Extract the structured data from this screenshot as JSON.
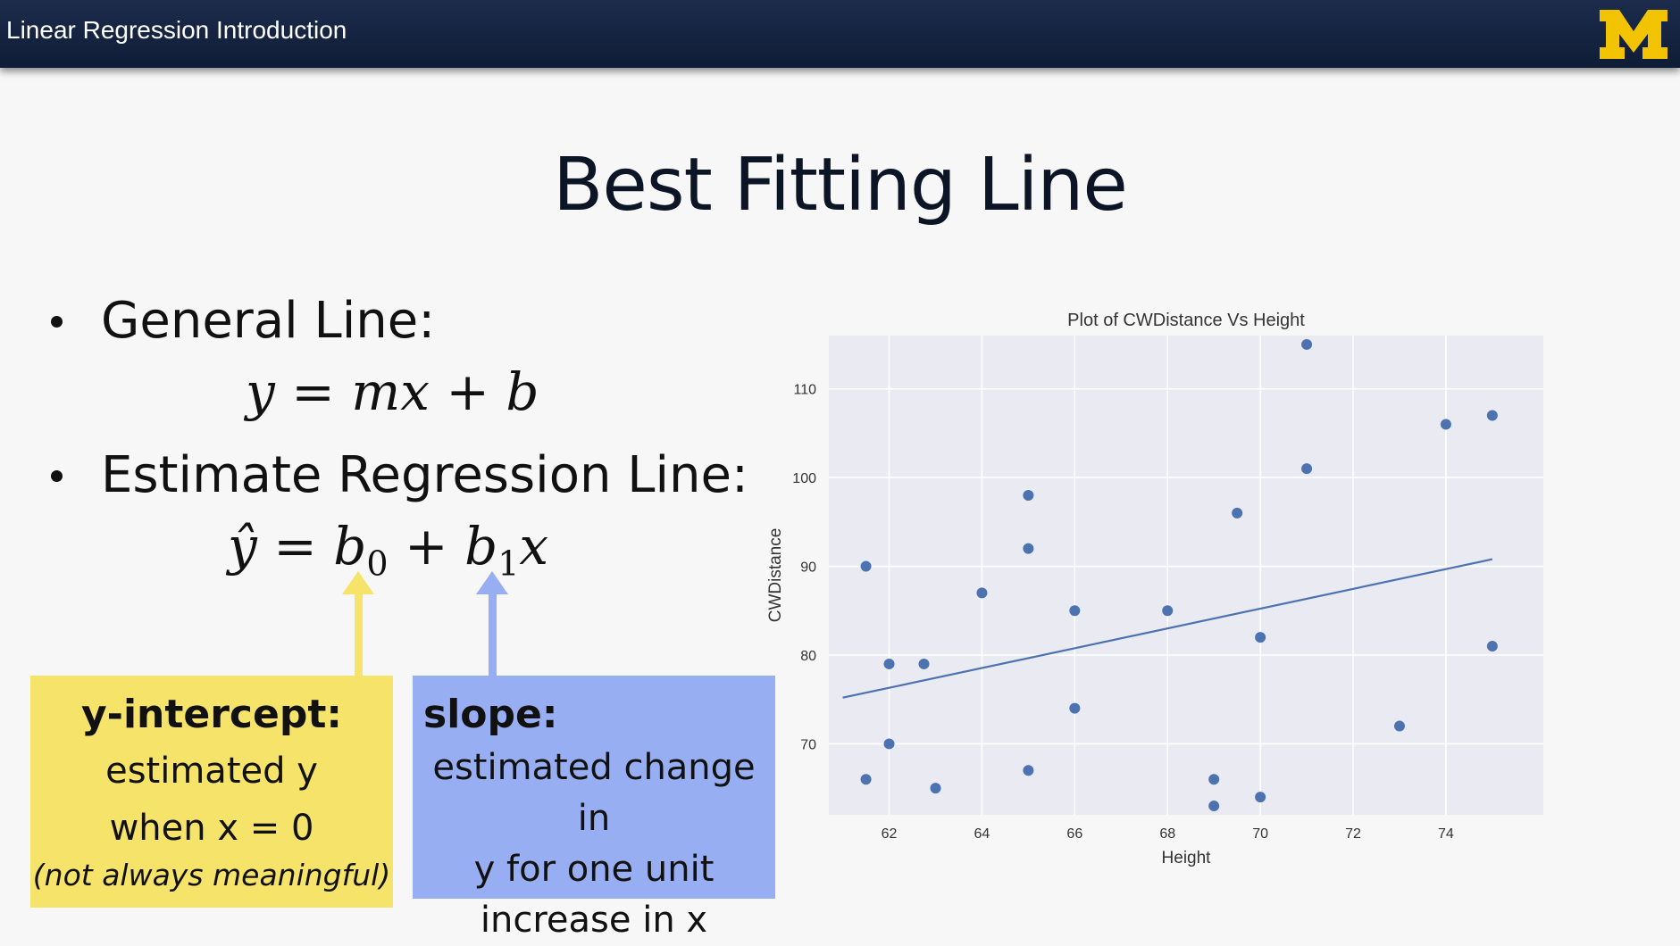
{
  "header": {
    "title": "Linear Regression Introduction",
    "logo_text": "M",
    "logo_color": "#f2c300"
  },
  "slide": {
    "title": "Best Fitting Line",
    "bullets": [
      {
        "label": "General Line:",
        "equation": "y = mx + b"
      },
      {
        "label": "Estimate Regression Line:",
        "equation": "ŷ = b0 + b1x"
      }
    ],
    "equation_parts": {
      "yhat": "ŷ",
      "equals": "=",
      "b": "b",
      "sub0": "0",
      "plus": "+",
      "sub1": "1",
      "x": "x"
    },
    "callouts": {
      "y_intercept": {
        "heading": "y-intercept:",
        "line1": "estimated y",
        "line2": "when x = 0",
        "note": "(not always meaningful)",
        "color": "#f5e36a"
      },
      "slope": {
        "heading": "slope:",
        "line1": "estimated change in",
        "line2": "y for one unit",
        "line3": "increase in x",
        "color": "#98aef2"
      }
    }
  },
  "chart_data": {
    "type": "scatter",
    "title": "Plot of CWDistance Vs Height",
    "xlabel": "Height",
    "ylabel": "CWDistance",
    "xlim": [
      60.7,
      76.1
    ],
    "ylim": [
      62,
      116
    ],
    "xticks": [
      62,
      64,
      66,
      68,
      70,
      72,
      74
    ],
    "yticks": [
      70,
      80,
      90,
      100,
      110
    ],
    "grid": true,
    "background": "#eaeaf2",
    "point_color": "#4c72b0",
    "points": [
      [
        61.5,
        90
      ],
      [
        61.5,
        66
      ],
      [
        62,
        79
      ],
      [
        62,
        70
      ],
      [
        62.75,
        79
      ],
      [
        63,
        65
      ],
      [
        64,
        87
      ],
      [
        65,
        98
      ],
      [
        65,
        92
      ],
      [
        65,
        67
      ],
      [
        66,
        85
      ],
      [
        66,
        74
      ],
      [
        68,
        85
      ],
      [
        69,
        66
      ],
      [
        69,
        63
      ],
      [
        69.5,
        96
      ],
      [
        70,
        82
      ],
      [
        70,
        64
      ],
      [
        71,
        115
      ],
      [
        71,
        101
      ],
      [
        73,
        72
      ],
      [
        74,
        106
      ],
      [
        75,
        107
      ],
      [
        75,
        81
      ]
    ],
    "fit_line": {
      "x": [
        61,
        75
      ],
      "y": [
        75.2,
        90.8
      ]
    }
  }
}
